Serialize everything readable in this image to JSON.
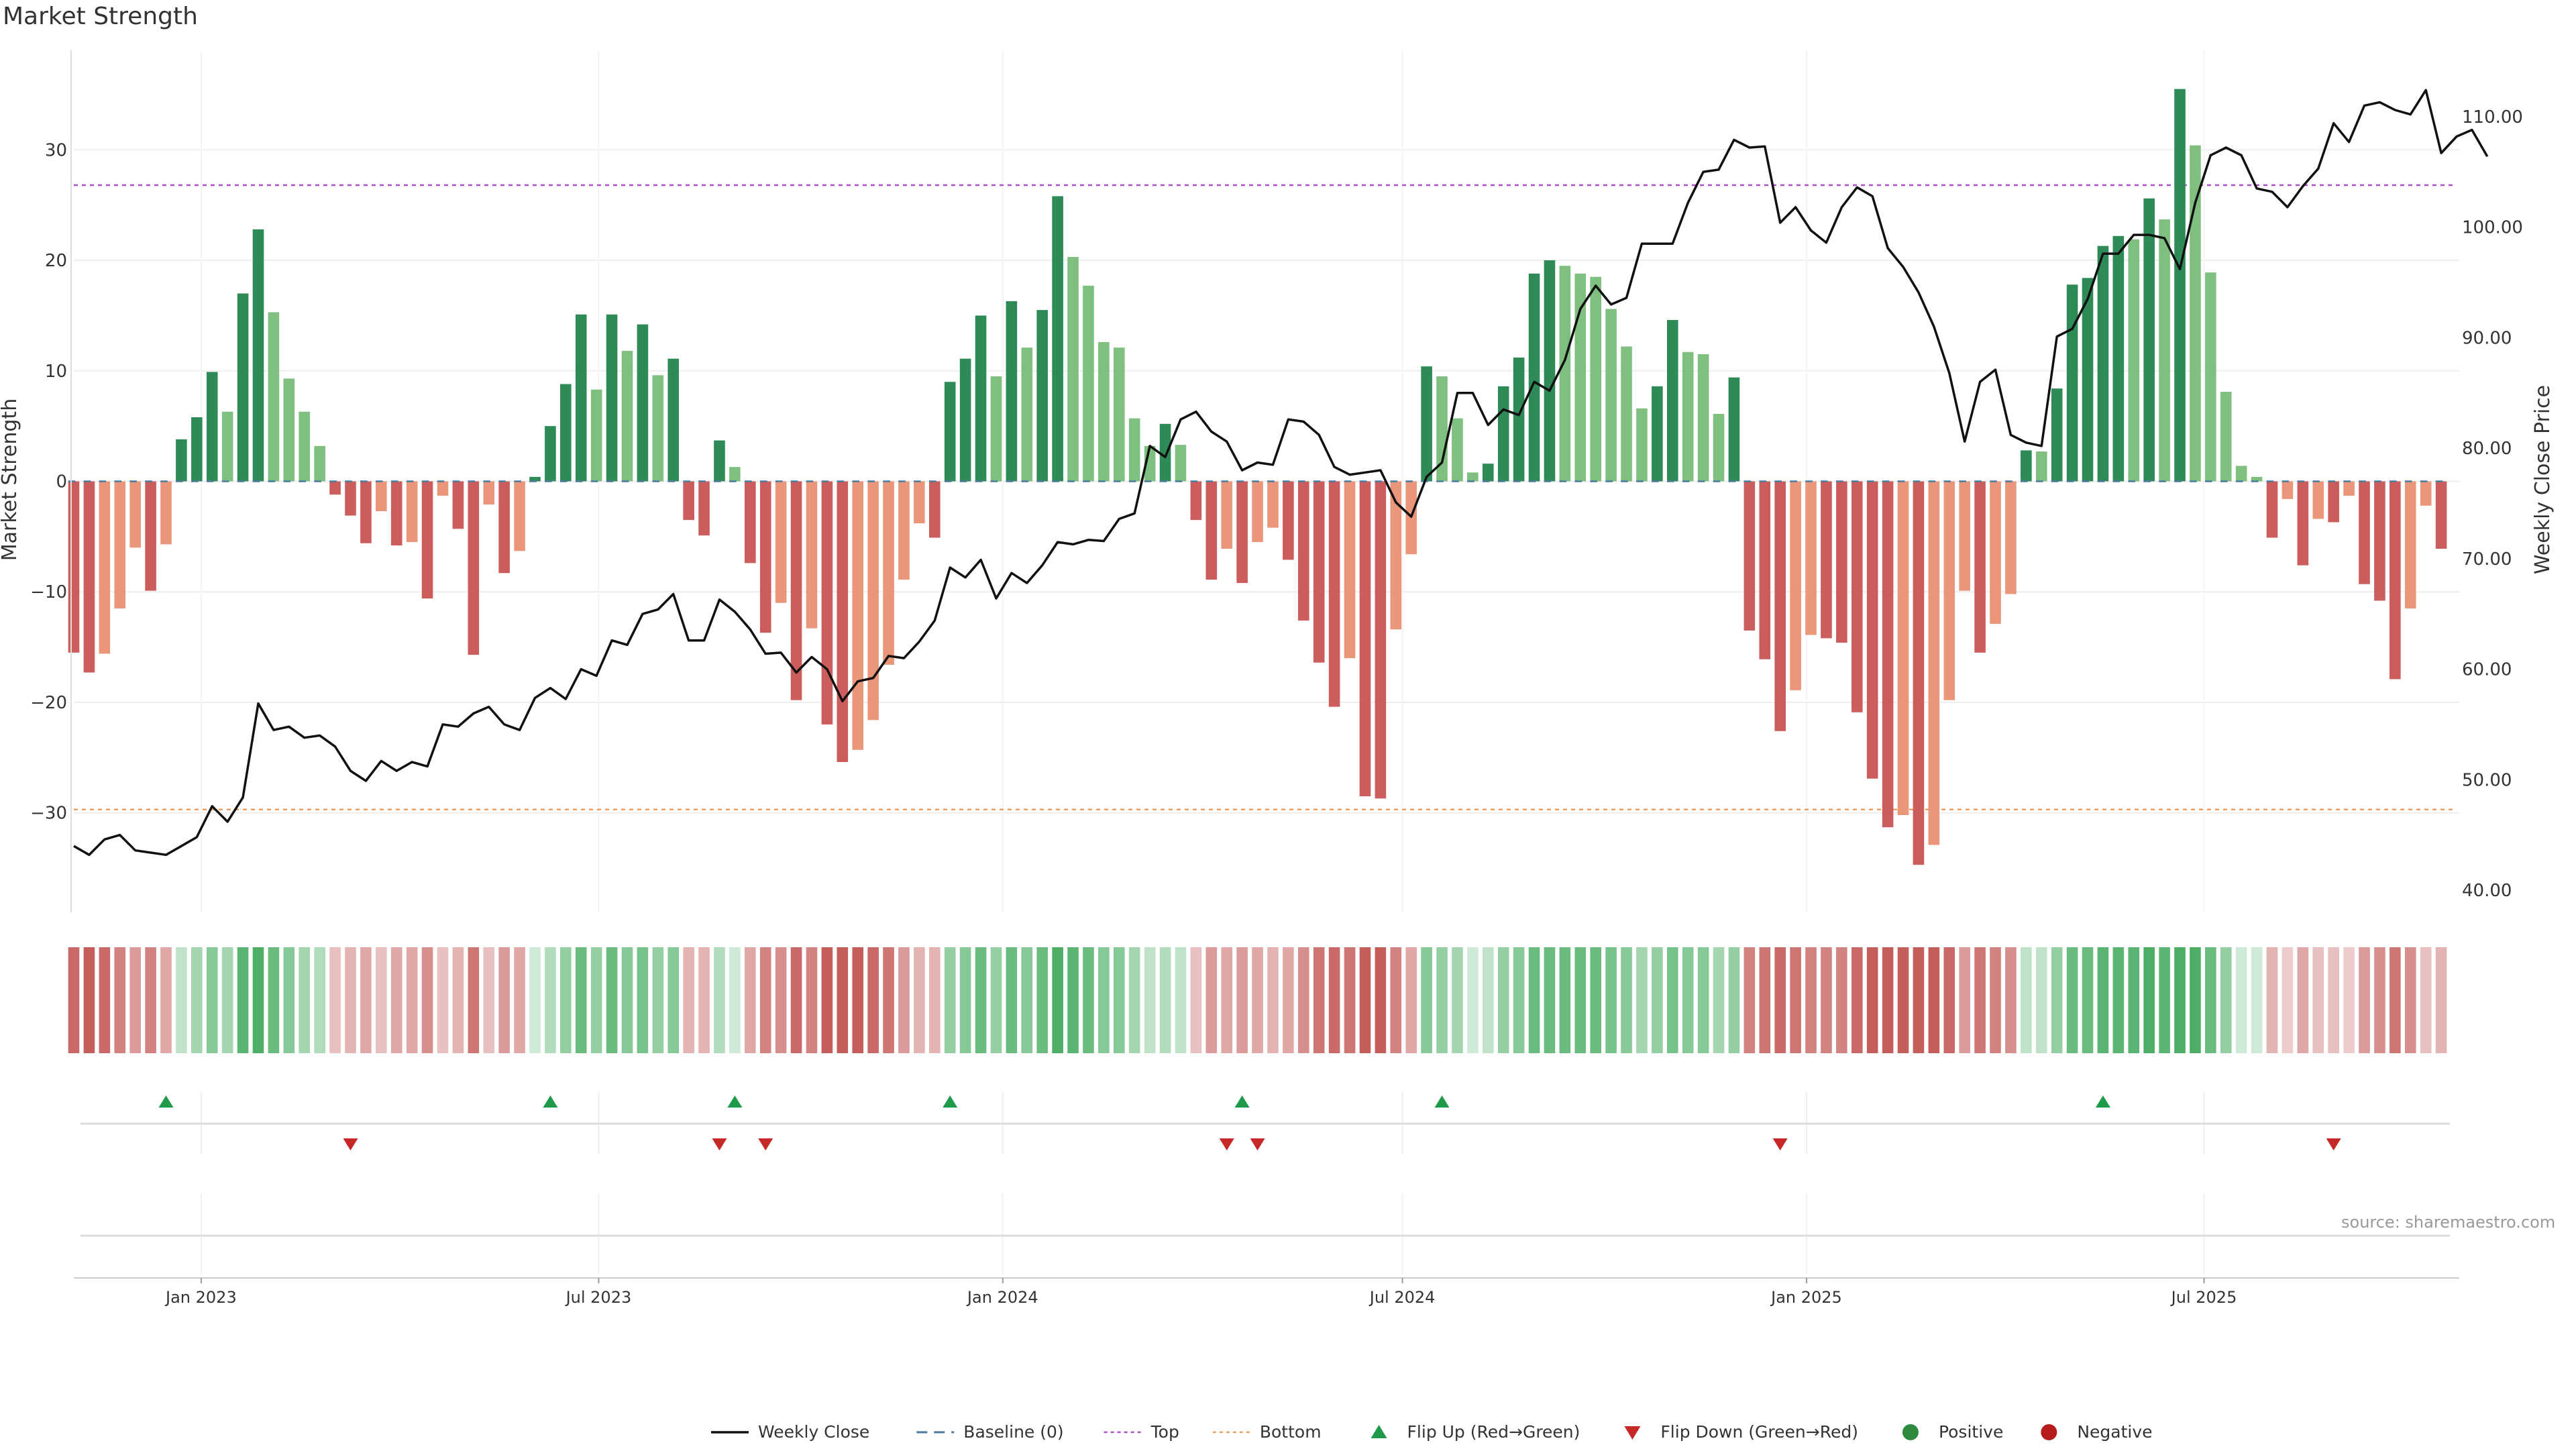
{
  "chart_data": {
    "type": "bar",
    "title": "Market Strength",
    "ylabel": "Market Strength",
    "y2label": "Weekly Close Price",
    "ylim": [
      -39,
      39
    ],
    "y2lim": [
      38,
      116
    ],
    "yticks": [
      -30,
      -20,
      -10,
      0,
      10,
      20,
      30
    ],
    "y2ticks": [
      "40.00",
      "50.00",
      "60.00",
      "70.00",
      "80.00",
      "90.00",
      "100.00",
      "110.00"
    ],
    "x_range": [
      "2022-11-04",
      "2025-10-24"
    ],
    "xticks": [
      {
        "date": "2023-01-01",
        "label": "Jan 2023"
      },
      {
        "date": "2023-07-01",
        "label": "Jul 2023"
      },
      {
        "date": "2024-01-01",
        "label": "Jan 2024"
      },
      {
        "date": "2024-07-01",
        "label": "Jul 2024"
      },
      {
        "date": "2025-01-01",
        "label": "Jan 2025"
      },
      {
        "date": "2025-07-01",
        "label": "Jul 2025"
      }
    ],
    "x_start": "2022-11-04",
    "x_step_days": 7,
    "top_line": 26.8,
    "bottom_line": -29.7,
    "strength": [
      -15.5,
      -17.3,
      -15.6,
      -11.5,
      -6.0,
      -9.9,
      -5.7,
      3.8,
      5.8,
      9.9,
      6.3,
      17.0,
      22.8,
      15.3,
      9.3,
      6.3,
      3.2,
      -1.2,
      -3.1,
      -5.6,
      -2.7,
      -5.8,
      -5.5,
      -10.6,
      -1.3,
      -4.3,
      -15.7,
      -2.1,
      -8.3,
      -6.3,
      0.4,
      5.0,
      8.8,
      15.1,
      8.3,
      15.1,
      11.8,
      14.2,
      9.6,
      11.1,
      -3.5,
      -4.9,
      3.7,
      1.3,
      -7.4,
      -13.7,
      -11.0,
      -19.8,
      -13.3,
      -22.0,
      -25.4,
      -24.3,
      -21.6,
      -16.6,
      -8.9,
      -3.8,
      -5.1,
      9.0,
      11.1,
      15.0,
      9.5,
      16.3,
      12.1,
      15.5,
      25.8,
      20.3,
      17.7,
      12.6,
      12.1,
      5.7,
      3.2,
      5.2,
      3.3,
      -3.5,
      -8.9,
      -6.1,
      -9.2,
      -5.5,
      -4.2,
      -7.1,
      -12.6,
      -16.4,
      -20.4,
      -16.0,
      -28.5,
      -28.7,
      -13.4,
      -6.6,
      10.4,
      9.5,
      5.7,
      0.8,
      1.6,
      8.6,
      11.2,
      18.8,
      20.0,
      19.5,
      18.8,
      18.5,
      15.6,
      12.2,
      6.6,
      8.6,
      14.6,
      11.7,
      11.5,
      6.1,
      9.4,
      -13.5,
      -16.1,
      -22.6,
      -18.9,
      -13.9,
      -14.2,
      -14.6,
      -20.9,
      -26.9,
      -31.3,
      -30.2,
      -34.7,
      -32.9,
      -19.8,
      -9.9,
      -15.5,
      -12.9,
      -10.2,
      2.8,
      2.7,
      8.4,
      17.8,
      18.4,
      21.3,
      22.2,
      21.9,
      25.6,
      23.7,
      35.5,
      30.4,
      18.9,
      8.1,
      1.4,
      0.4,
      -5.1,
      -1.6,
      -7.6,
      -3.4,
      -3.7,
      -1.3,
      -9.3,
      -10.8,
      -17.9,
      -11.5,
      -2.2,
      -6.1
    ],
    "weekly_close": [
      44.0,
      43.2,
      44.6,
      45.0,
      43.6,
      43.4,
      43.2,
      44.0,
      44.8,
      47.6,
      46.2,
      48.4,
      56.9,
      54.5,
      54.8,
      53.8,
      54.0,
      53.0,
      50.8,
      49.9,
      51.7,
      50.8,
      51.6,
      51.2,
      55.0,
      54.8,
      56.0,
      56.6,
      55.0,
      54.5,
      57.4,
      58.3,
      57.3,
      60.0,
      59.4,
      62.6,
      62.2,
      65.0,
      65.4,
      66.8,
      62.6,
      62.6,
      66.3,
      65.2,
      63.6,
      61.4,
      61.5,
      59.7,
      61.1,
      60.0,
      57.1,
      58.9,
      59.2,
      61.2,
      61.0,
      62.5,
      64.4,
      69.2,
      68.3,
      69.9,
      66.4,
      68.7,
      67.8,
      69.4,
      71.5,
      71.3,
      71.7,
      71.6,
      73.6,
      74.1,
      80.2,
      79.2,
      82.6,
      83.3,
      81.5,
      80.6,
      78.0,
      78.7,
      78.5,
      82.6,
      82.4,
      81.2,
      78.3,
      77.6,
      77.8,
      78.0,
      75.1,
      73.8,
      77.4,
      78.7,
      85.0,
      85.0,
      82.1,
      83.5,
      83.0,
      86.0,
      85.2,
      88.0,
      92.6,
      94.7,
      93.0,
      93.6,
      98.5,
      98.5,
      98.5,
      102.2,
      105.0,
      105.2,
      107.9,
      107.2,
      107.3,
      100.4,
      101.8,
      99.7,
      98.6,
      101.8,
      103.6,
      102.8,
      98.1,
      96.4,
      94.1,
      91.0,
      86.8,
      80.6,
      86.0,
      87.1,
      81.2,
      80.5,
      80.2,
      90.1,
      90.8,
      93.5,
      97.6,
      97.6,
      99.3,
      99.3,
      99.0,
      96.2,
      102.2,
      106.5,
      107.2,
      106.5,
      103.5,
      103.2,
      101.8,
      103.7,
      105.3,
      109.4,
      107.7,
      111.0,
      111.3,
      110.6,
      110.2,
      112.4,
      106.7,
      108.2,
      108.8,
      106.4
    ],
    "shade_levels": [
      -9,
      -10,
      -9,
      -7,
      -5,
      -7,
      -4,
      2,
      4,
      6,
      4,
      9,
      10,
      8,
      6,
      4,
      3,
      -2,
      -3,
      -4,
      -2,
      -4,
      -4,
      -6,
      -2,
      -3,
      -8,
      -2,
      -5,
      -4,
      1,
      3,
      5,
      8,
      5,
      8,
      6,
      7,
      5,
      6,
      -3,
      -3,
      3,
      1,
      -4,
      -7,
      -6,
      -9,
      -7,
      -10,
      -10,
      -10,
      -9,
      -8,
      -5,
      -3,
      -3,
      5,
      6,
      8,
      5,
      8,
      6,
      8,
      10,
      9,
      8,
      6,
      6,
      4,
      2,
      3,
      2,
      -2,
      -5,
      -4,
      -5,
      -4,
      -3,
      -4,
      -6,
      -8,
      -9,
      -8,
      -10,
      -10,
      -7,
      -4,
      6,
      5,
      4,
      1,
      2,
      5,
      6,
      8,
      8,
      8,
      8,
      8,
      7,
      6,
      4,
      5,
      7,
      6,
      6,
      4,
      5,
      -7,
      -8,
      -9,
      -8,
      -7,
      -7,
      -7,
      -9,
      -10,
      -10,
      -10,
      -10,
      -10,
      -9,
      -5,
      -8,
      -7,
      -6,
      2,
      2,
      5,
      8,
      8,
      9,
      9,
      9,
      10,
      9,
      10,
      10,
      8,
      5,
      1,
      1,
      -3,
      -1,
      -4,
      -2,
      -2,
      -1,
      -5,
      -6,
      -8,
      -6,
      -2,
      -3
    ],
    "flip_up_dates": [
      "2022-12-16",
      "2023-06-09",
      "2023-09-01",
      "2023-12-08",
      "2024-04-19",
      "2024-07-19",
      "2025-05-16"
    ],
    "flip_down_dates": [
      "2023-03-10",
      "2023-08-25",
      "2023-09-15",
      "2024-04-12",
      "2024-04-26",
      "2024-12-20",
      "2025-08-29"
    ],
    "legend": [
      {
        "label": "Weekly Close",
        "kind": "line",
        "color": "#111111"
      },
      {
        "label": "Baseline (0)",
        "kind": "dash",
        "color": "#4a7a9c"
      },
      {
        "label": "Top",
        "kind": "dot",
        "color": "#b04fc7"
      },
      {
        "label": "Bottom",
        "kind": "dot",
        "color": "#e8a060"
      },
      {
        "label": "Flip Up (Red→Green)",
        "kind": "tri-up",
        "color": "#1f9a4a"
      },
      {
        "label": "Flip Down (Green→Red)",
        "kind": "tri-down",
        "color": "#c62828"
      },
      {
        "label": "Positive",
        "kind": "circle",
        "color": "#2e8b3e"
      },
      {
        "label": "Negative",
        "kind": "circle",
        "color": "#b71c1c"
      }
    ]
  },
  "colors": {
    "pos_strong": "#2e8b57",
    "pos_weak": "#7fbf7f",
    "neg_strong": "#cd5c5c",
    "neg_weak": "#e9967a",
    "top_line": "#b04fc7",
    "bottom_line": "#e8a060",
    "close_line": "#111111",
    "grid": "#eeeeee"
  },
  "source": "source: sharemaestro.com"
}
